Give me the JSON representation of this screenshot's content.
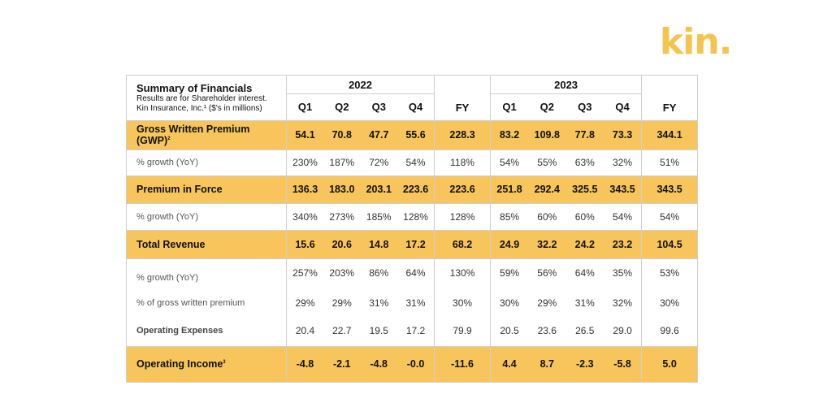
{
  "logo": "kin.",
  "header": {
    "title": "Summary of Financials",
    "subtitle_line1": "Results are for Shareholder interest.",
    "subtitle_line2": "Kin Insurance, Inc.¹ ($'s in millions)",
    "year_2022": "2022",
    "year_2023": "2023",
    "quarters": [
      "Q1",
      "Q2",
      "Q3",
      "Q4"
    ],
    "fy": "FY"
  },
  "rows": [
    {
      "label": "Gross Written Premium (GWP)",
      "sup": "2",
      "style": "y",
      "values": [
        "54.1",
        "70.8",
        "47.7",
        "55.6",
        "228.3",
        "83.2",
        "109.8",
        "77.8",
        "73.3",
        "344.1"
      ]
    },
    {
      "label": "% growth (YoY)",
      "sup": "",
      "style": "w",
      "values": [
        "230%",
        "187%",
        "72%",
        "54%",
        "118%",
        "54%",
        "55%",
        "63%",
        "32%",
        "51%"
      ]
    },
    {
      "label": "Premium in Force",
      "sup": "",
      "style": "y",
      "values": [
        "136.3",
        "183.0",
        "203.1",
        "223.6",
        "223.6",
        "251.8",
        "292.4",
        "325.5",
        "343.5",
        "343.5"
      ]
    },
    {
      "label": "% growth (YoY)",
      "sup": "",
      "style": "w",
      "values": [
        "340%",
        "273%",
        "185%",
        "128%",
        "128%",
        "85%",
        "60%",
        "60%",
        "54%",
        "54%"
      ]
    },
    {
      "label": "Total Revenue",
      "sup": "",
      "style": "y",
      "values": [
        "15.6",
        "20.6",
        "14.8",
        "17.2",
        "68.2",
        "24.9",
        "32.2",
        "24.2",
        "23.2",
        "104.5"
      ]
    },
    {
      "label": "% growth (YoY)",
      "sup": "",
      "style": "w",
      "values": [
        "257%",
        "203%",
        "86%",
        "64%",
        "130%",
        "59%",
        "56%",
        "64%",
        "35%",
        "53%"
      ]
    },
    {
      "label": "% of gross written premium",
      "sup": "",
      "style": "w",
      "values": [
        "29%",
        "29%",
        "31%",
        "31%",
        "30%",
        "30%",
        "29%",
        "31%",
        "32%",
        "30%"
      ]
    },
    {
      "label": "Operating Expenses",
      "sup": "",
      "style": "wb",
      "values": [
        "20.4",
        "22.7",
        "19.5",
        "17.2",
        "79.9",
        "20.5",
        "23.6",
        "26.5",
        "29.0",
        "99.6"
      ]
    },
    {
      "label": "Operating Income",
      "sup": "3",
      "style": "y",
      "values": [
        "-4.8",
        "-2.1",
        "-4.8",
        "-0.0",
        "-11.6",
        "4.4",
        "8.7",
        "-2.3",
        "-5.8",
        "5.0"
      ]
    }
  ],
  "colors": {
    "accent": "#f7c55b",
    "logo": "#f4c44f",
    "border": "#cfcfcf"
  }
}
